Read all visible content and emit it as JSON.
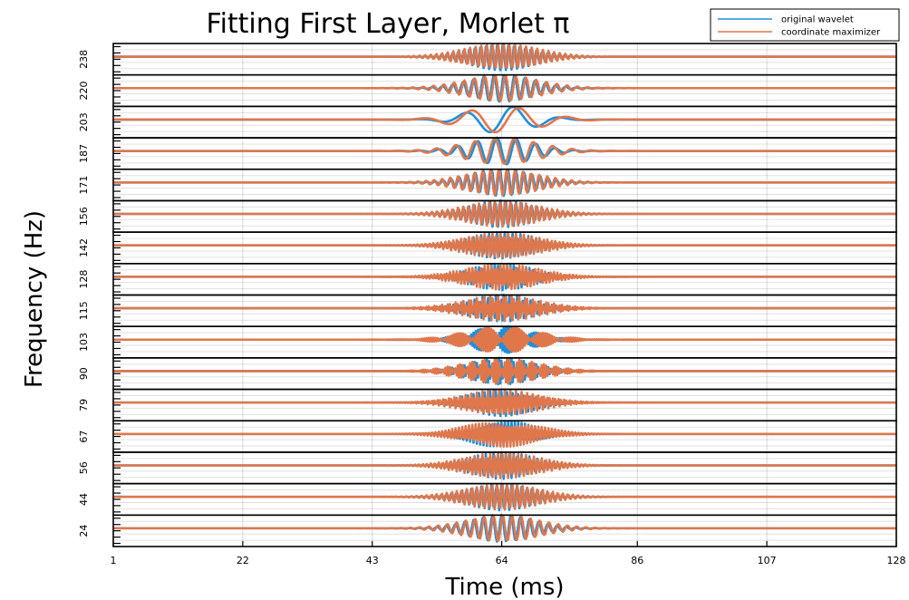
{
  "chart_data": {
    "type": "line",
    "title": "Fitting First Layer, Morlet π",
    "xlabel": "Time (ms)",
    "ylabel": "Frequency (Hz)",
    "xlim": [
      1,
      128
    ],
    "x_ticks": [
      1,
      22,
      43,
      64,
      86,
      107,
      128
    ],
    "x_tick_labels": [
      "1",
      "22",
      "43",
      "64",
      "86",
      "107",
      "128"
    ],
    "grid": true,
    "legend_position": "top-right",
    "rows": [
      "238",
      "220",
      "203",
      "187",
      "171",
      "156",
      "142",
      "128",
      "115",
      "103",
      "90",
      "79",
      "67",
      "56",
      "44",
      "24"
    ],
    "center_time": 64,
    "series": [
      {
        "name": "original wavelet",
        "color": "#1f8fdc"
      },
      {
        "name": "coordinate maximizer",
        "color": "#e0774b"
      }
    ]
  }
}
